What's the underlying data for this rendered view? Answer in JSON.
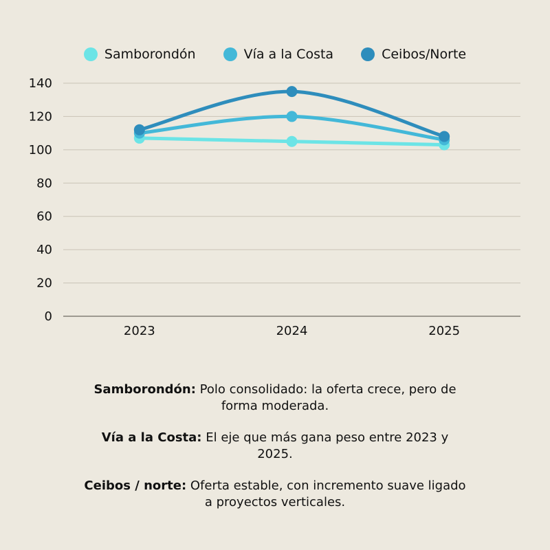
{
  "chart_data": {
    "type": "line",
    "categories": [
      "2023",
      "2024",
      "2025"
    ],
    "series": [
      {
        "name": "Samborondón",
        "values": [
          107,
          105,
          103
        ],
        "color": "#6ce4e6"
      },
      {
        "name": "Vía a la Costa",
        "values": [
          110,
          120,
          106
        ],
        "color": "#43b8d8"
      },
      {
        "name": "Ceibos/Norte",
        "values": [
          112,
          135,
          108
        ],
        "color": "#2e8dbc"
      }
    ],
    "ylim": [
      0,
      140
    ],
    "yticks": [
      "0",
      "20",
      "40",
      "60",
      "80",
      "100",
      "120",
      "140"
    ],
    "grid": true,
    "legend": "top",
    "smooth": true
  },
  "notes": [
    {
      "title": "Samborondón:",
      "text": "Polo consolidado: la oferta crece, pero de forma moderada."
    },
    {
      "title": "Vía a la Costa:",
      "text": "El eje que más gana peso entre 2023 y 2025."
    },
    {
      "title": "Ceibos / norte:",
      "text": "Oferta estable, con incremento suave ligado a proyectos verticales."
    }
  ]
}
